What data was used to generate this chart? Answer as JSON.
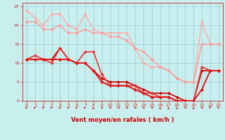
{
  "title": "",
  "xlabel": "Vent moyen/en rafales ( km/h )",
  "ylabel": "",
  "bg_color": "#c8eeee",
  "grid_color": "#9ed4d4",
  "xlim": [
    -0.5,
    23.5
  ],
  "ylim": [
    0,
    26
  ],
  "yticks": [
    0,
    5,
    10,
    15,
    20,
    25
  ],
  "xticks": [
    0,
    1,
    2,
    3,
    4,
    5,
    6,
    7,
    8,
    9,
    10,
    11,
    12,
    13,
    14,
    15,
    16,
    17,
    18,
    19,
    20,
    21,
    22,
    23
  ],
  "series": [
    {
      "x": [
        0,
        1,
        2,
        3,
        4,
        5,
        6,
        7,
        8,
        9,
        10,
        11,
        12,
        13,
        14,
        15,
        16,
        17,
        18,
        19,
        20,
        21,
        22,
        23
      ],
      "y": [
        24,
        22,
        20,
        23,
        23,
        20,
        19,
        23,
        19,
        18,
        18,
        18,
        18,
        14,
        10,
        9,
        9,
        8,
        6,
        5,
        5,
        21,
        15,
        15
      ],
      "color": "#ffaaaa",
      "lw": 1.0,
      "marker": "D",
      "ms": 2.0
    },
    {
      "x": [
        0,
        1,
        2,
        3,
        4,
        5,
        6,
        7,
        8,
        9,
        10,
        11,
        12,
        13,
        14,
        15,
        16,
        17,
        18,
        19,
        20,
        21,
        22,
        23
      ],
      "y": [
        21,
        21,
        19,
        19,
        20,
        18,
        18,
        19,
        18,
        18,
        17,
        17,
        16,
        14,
        13,
        11,
        9,
        8,
        6,
        5,
        5,
        15,
        15,
        15
      ],
      "color": "#ff9999",
      "lw": 1.0,
      "marker": "D",
      "ms": 2.0
    },
    {
      "x": [
        0,
        1,
        2,
        3,
        4,
        5,
        6,
        7,
        8,
        9,
        10,
        11,
        12,
        13,
        14,
        15,
        16,
        17,
        18,
        19,
        20,
        21,
        22,
        23
      ],
      "y": [
        11,
        11,
        11,
        11,
        14,
        11,
        10,
        10,
        8,
        6,
        5,
        5,
        5,
        4,
        3,
        2,
        2,
        2,
        1,
        0,
        0,
        8,
        8,
        8
      ],
      "color": "#cc0000",
      "lw": 1.2,
      "marker": "D",
      "ms": 2.0
    },
    {
      "x": [
        0,
        1,
        2,
        3,
        4,
        5,
        6,
        7,
        8,
        9,
        10,
        11,
        12,
        13,
        14,
        15,
        16,
        17,
        18,
        19,
        20,
        21,
        22,
        23
      ],
      "y": [
        11,
        12,
        11,
        10,
        14,
        11,
        10,
        13,
        13,
        7,
        4,
        4,
        4,
        4,
        2,
        2,
        1,
        1,
        0,
        0,
        0,
        9,
        8,
        8
      ],
      "color": "#ee3333",
      "lw": 1.2,
      "marker": "D",
      "ms": 2.0
    },
    {
      "x": [
        0,
        1,
        2,
        3,
        4,
        5,
        6,
        7,
        8,
        9,
        10,
        11,
        12,
        13,
        14,
        15,
        16,
        17,
        18,
        19,
        20,
        21,
        22,
        23
      ],
      "y": [
        11,
        11,
        11,
        11,
        11,
        11,
        10,
        10,
        8,
        5,
        4,
        4,
        4,
        3,
        2,
        1,
        1,
        1,
        0,
        0,
        0,
        3,
        8,
        8
      ],
      "color": "#ff5555",
      "lw": 1.2,
      "marker": "D",
      "ms": 2.0
    },
    {
      "x": [
        0,
        1,
        2,
        3,
        4,
        5,
        6,
        7,
        8,
        9,
        10,
        11,
        12,
        13,
        14,
        15,
        16,
        17,
        18,
        19,
        20,
        21,
        22,
        23
      ],
      "y": [
        11,
        11,
        11,
        11,
        11,
        11,
        10,
        10,
        8,
        5,
        4,
        4,
        4,
        3,
        2,
        1,
        1,
        1,
        0,
        0,
        0,
        3,
        8,
        8
      ],
      "color": "#dd1111",
      "lw": 1.2,
      "marker": "D",
      "ms": 2.0
    }
  ],
  "wind_dirs": [
    45,
    45,
    45,
    45,
    45,
    45,
    45,
    45,
    0,
    315,
    315,
    315,
    315,
    315,
    315,
    315,
    0,
    0,
    0,
    315,
    0,
    315,
    135,
    135
  ],
  "arrow_color": "#cc2222",
  "xlabel_color": "#cc0000",
  "tick_color": "#cc2222",
  "tick_fontsize": 4.5,
  "xlabel_fontsize": 6.0
}
